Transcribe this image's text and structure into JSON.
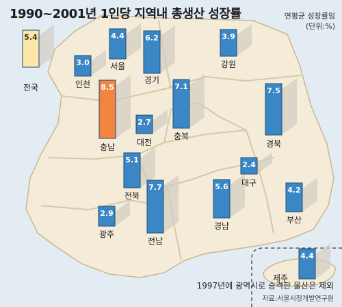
{
  "header": {
    "title": "1990~2001년 1인당 지역내 총생산 성장률",
    "unit_line1": "연평균 성장률임",
    "unit_line2": "(단위:%)"
  },
  "footer": {
    "note": "1997년에 광역시로 승격한 울산은 제외",
    "source": "자료:서울시정개발연구원"
  },
  "colors": {
    "sea": "#e3ebf3",
    "land": "#f4ecd8",
    "border": "#d7c7a5",
    "bar": "#3b86c4",
    "bar_national": "#fde7a8",
    "bar_highlight": "#f2843f",
    "shadow": "#d2cdc2"
  },
  "chart_data": {
    "type": "bar",
    "title": "1990~2001년 1인당 지역내 총생산 성장률",
    "ylabel": "연평균 성장률 (%)",
    "categories": [
      "전국",
      "인천",
      "서울",
      "경기",
      "강원",
      "충남",
      "대전",
      "충북",
      "경북",
      "전북",
      "대구",
      "광주",
      "전남",
      "경남",
      "부산",
      "제주"
    ],
    "values": [
      5.4,
      3.0,
      4.4,
      6.2,
      3.9,
      8.5,
      2.7,
      7.1,
      7.5,
      5.1,
      2.4,
      2.9,
      7.7,
      5.6,
      4.2,
      4.4
    ]
  }
}
